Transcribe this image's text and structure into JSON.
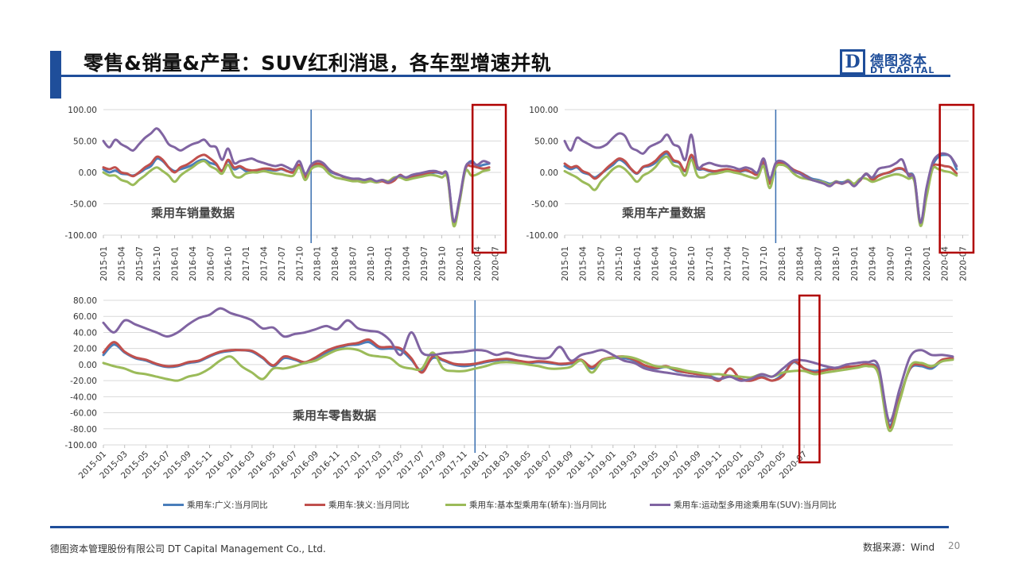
{
  "header": {
    "title": "零售&销量&产量：SUV红利消退，各车型增速并轨",
    "logo_cn": "德图资本",
    "logo_en": "DT CAPITAL",
    "logo_letter": "D"
  },
  "footer": {
    "company": "德图资本管理股份有限公司  DT Capital Management  Co., Ltd.",
    "source": "数据来源：Wind",
    "page": "20"
  },
  "colors": {
    "broad": "#4a7ebb",
    "narrow": "#c0504d",
    "sedan": "#9bbb59",
    "suv": "#8064a2",
    "highlight": "#b00000",
    "divider": "#3a6fb0"
  },
  "legend": [
    {
      "key": "broad",
      "label": "乘用车:广义:当月同比"
    },
    {
      "key": "narrow",
      "label": "乘用车:狭义:当月同比"
    },
    {
      "key": "sedan",
      "label": "乘用车:基本型乘用车(轿车):当月同比"
    },
    {
      "key": "suv",
      "label": "乘用车:运动型多用途乘用车(SUV):当月同比"
    }
  ],
  "chart_data": [
    {
      "type": "line",
      "annotation": "乘用车销量数据",
      "ylim": [
        -100,
        100
      ],
      "yticks": [
        "100.00",
        "50.00",
        "0.00",
        "-50.00",
        "-100.00"
      ],
      "xticks": [
        "2015-01",
        "2015-04",
        "2015-07",
        "2015-10",
        "2016-01",
        "2016-04",
        "2016-07",
        "2016-10",
        "2017-01",
        "2017-04",
        "2017-07",
        "2017-10",
        "2018-01",
        "2018-04",
        "2018-07",
        "2018-10",
        "2019-01",
        "2019-04",
        "2019-07",
        "2019-10",
        "2020-01",
        "2020-04",
        "2020-07"
      ],
      "start": "2015-01",
      "divider": "2017-12",
      "highlight": [
        "2020-04",
        "2020-08"
      ],
      "series": [
        {
          "key": "broad",
          "values": [
            5,
            0,
            3,
            -2,
            -3,
            -5,
            -1,
            5,
            10,
            22,
            18,
            8,
            2,
            5,
            8,
            12,
            18,
            20,
            15,
            12,
            3,
            18,
            5,
            8,
            2,
            1,
            3,
            5,
            4,
            3,
            5,
            2,
            1,
            10,
            -5,
            8,
            12,
            10,
            2,
            -2,
            -5,
            -10,
            -12,
            -12,
            -15,
            -12,
            -14,
            -13,
            -15,
            -12,
            -5,
            -10,
            -8,
            -6,
            -4,
            -2,
            0,
            -2,
            -5,
            -80,
            -45,
            5,
            18,
            10,
            12,
            14
          ]
        },
        {
          "key": "narrow",
          "values": [
            8,
            5,
            8,
            0,
            -2,
            -6,
            0,
            8,
            14,
            25,
            20,
            8,
            0,
            8,
            12,
            18,
            25,
            28,
            22,
            14,
            2,
            20,
            8,
            10,
            5,
            3,
            4,
            6,
            6,
            4,
            6,
            2,
            0,
            12,
            -8,
            10,
            14,
            12,
            4,
            -1,
            -5,
            -10,
            -12,
            -14,
            -16,
            -13,
            -16,
            -14,
            -17,
            -13,
            -4,
            -10,
            -6,
            -4,
            -2,
            0,
            1,
            -1,
            -8,
            -82,
            -46,
            6,
            10,
            8,
            6,
            8
          ]
        },
        {
          "key": "sedan",
          "values": [
            0,
            -5,
            -5,
            -12,
            -15,
            -20,
            -12,
            -5,
            3,
            8,
            2,
            -5,
            -15,
            -5,
            2,
            8,
            15,
            18,
            10,
            5,
            -2,
            12,
            -5,
            -8,
            -2,
            0,
            0,
            2,
            0,
            -2,
            -3,
            -5,
            -5,
            8,
            -12,
            5,
            10,
            8,
            -2,
            -8,
            -10,
            -12,
            -14,
            -14,
            -16,
            -14,
            -16,
            -12,
            -14,
            -8,
            -8,
            -12,
            -10,
            -8,
            -6,
            -4,
            -5,
            -8,
            -10,
            -85,
            -48,
            2,
            -5,
            -3,
            2,
            4
          ]
        },
        {
          "key": "suv",
          "values": [
            50,
            40,
            52,
            45,
            40,
            35,
            45,
            55,
            62,
            70,
            60,
            45,
            40,
            35,
            40,
            45,
            48,
            52,
            42,
            40,
            20,
            38,
            15,
            18,
            20,
            22,
            18,
            15,
            12,
            10,
            12,
            8,
            5,
            18,
            -2,
            12,
            18,
            15,
            5,
            -2,
            -5,
            -8,
            -10,
            -10,
            -12,
            -10,
            -14,
            -12,
            -16,
            -10,
            -5,
            -8,
            -4,
            -2,
            0,
            2,
            2,
            -2,
            -5,
            -78,
            -42,
            8,
            15,
            12,
            18,
            15
          ]
        }
      ]
    },
    {
      "type": "line",
      "annotation": "乘用车产量数据",
      "ylim": [
        -100,
        100
      ],
      "yticks": [
        "100.00",
        "50.00",
        "0.00",
        "-50.00",
        "-100.00"
      ],
      "xticks": [
        "2015-01",
        "2015-04",
        "2015-07",
        "2015-10",
        "2016-01",
        "2016-04",
        "2016-07",
        "2016-10",
        "2017-01",
        "2017-04",
        "2017-07",
        "2017-10",
        "2018-01",
        "2018-04",
        "2018-07",
        "2018-10",
        "2019-01",
        "2019-04",
        "2019-07",
        "2019-10",
        "2020-01",
        "2020-04",
        "2020-07"
      ],
      "start": "2015-01",
      "divider": "2017-12",
      "highlight": [
        "2020-04",
        "2020-08"
      ],
      "series": [
        {
          "key": "broad",
          "values": [
            10,
            5,
            8,
            0,
            -3,
            -8,
            -2,
            5,
            12,
            20,
            15,
            5,
            -2,
            8,
            10,
            15,
            25,
            30,
            18,
            15,
            2,
            25,
            6,
            5,
            2,
            1,
            3,
            4,
            2,
            1,
            3,
            0,
            -2,
            15,
            -15,
            10,
            14,
            10,
            3,
            0,
            -5,
            -10,
            -12,
            -15,
            -18,
            -15,
            -16,
            -14,
            -18,
            -12,
            -3,
            -10,
            -5,
            -2,
            0,
            5,
            5,
            -2,
            -10,
            -80,
            -30,
            10,
            25,
            28,
            25,
            5
          ]
        },
        {
          "key": "narrow",
          "values": [
            14,
            8,
            10,
            2,
            -2,
            -10,
            -3,
            7,
            15,
            22,
            18,
            6,
            -1,
            9,
            12,
            18,
            28,
            33,
            20,
            16,
            3,
            28,
            8,
            6,
            3,
            2,
            4,
            5,
            3,
            2,
            4,
            0,
            -3,
            17,
            -18,
            12,
            15,
            11,
            4,
            0,
            -6,
            -12,
            -14,
            -17,
            -20,
            -16,
            -18,
            -15,
            -20,
            -13,
            -2,
            -12,
            -6,
            -2,
            1,
            6,
            6,
            -3,
            -12,
            -82,
            -32,
            8,
            12,
            10,
            8,
            -2
          ]
        },
        {
          "key": "sedan",
          "values": [
            2,
            -3,
            -8,
            -15,
            -20,
            -28,
            -15,
            -5,
            5,
            10,
            5,
            -5,
            -15,
            -5,
            0,
            8,
            20,
            25,
            12,
            8,
            -5,
            20,
            -5,
            -8,
            -3,
            -2,
            0,
            2,
            0,
            -2,
            -5,
            -8,
            -8,
            10,
            -25,
            8,
            12,
            8,
            -2,
            -8,
            -10,
            -12,
            -14,
            -16,
            -20,
            -14,
            -18,
            -12,
            -18,
            -10,
            -10,
            -15,
            -12,
            -8,
            -5,
            -3,
            -5,
            -10,
            -15,
            -85,
            -40,
            5,
            5,
            2,
            0,
            -5
          ]
        },
        {
          "key": "suv",
          "values": [
            50,
            35,
            55,
            50,
            45,
            40,
            40,
            45,
            55,
            62,
            58,
            40,
            35,
            30,
            40,
            45,
            50,
            60,
            45,
            40,
            20,
            60,
            10,
            12,
            15,
            12,
            10,
            10,
            8,
            5,
            8,
            5,
            0,
            22,
            -10,
            15,
            18,
            12,
            2,
            -2,
            -8,
            -12,
            -15,
            -18,
            -22,
            -15,
            -18,
            -14,
            -22,
            -12,
            -2,
            -8,
            5,
            8,
            10,
            15,
            20,
            -5,
            -10,
            -80,
            -25,
            15,
            28,
            30,
            25,
            10
          ]
        }
      ]
    },
    {
      "type": "line",
      "annotation": "乘用车零售数据",
      "ylim": [
        -100,
        80
      ],
      "yticks": [
        "80.00",
        "60.00",
        "40.00",
        "20.00",
        "0.00",
        "-20.00",
        "-40.00",
        "-60.00",
        "-80.00",
        "-100.00"
      ],
      "xticks": [
        "2015-01",
        "2015-03",
        "2015-05",
        "2015-07",
        "2015-09",
        "2015-11",
        "2016-01",
        "2016-03",
        "2016-05",
        "2016-07",
        "2016-09",
        "2016-11",
        "2017-01",
        "2017-03",
        "2017-05",
        "2017-07",
        "2017-09",
        "2017-11",
        "2018-01",
        "2018-03",
        "2018-05",
        "2018-07",
        "2018-09",
        "2018-11",
        "2019-01",
        "2019-03",
        "2019-05",
        "2019-07",
        "2019-09",
        "2019-11",
        "2020-01",
        "2020-03",
        "2020-05",
        "2020-07"
      ],
      "start": "2015-01",
      "divider": "2017-12",
      "highlight": [
        "2020-07",
        "2020-08"
      ],
      "series": [
        {
          "key": "broad",
          "values": [
            12,
            25,
            15,
            8,
            5,
            0,
            -3,
            -2,
            2,
            4,
            10,
            15,
            17,
            18,
            16,
            8,
            -2,
            8,
            6,
            2,
            8,
            15,
            20,
            24,
            25,
            28,
            20,
            20,
            18,
            6,
            -8,
            8,
            5,
            0,
            -2,
            0,
            3,
            5,
            6,
            4,
            2,
            3,
            2,
            0,
            1,
            5,
            -5,
            5,
            8,
            8,
            5,
            -2,
            -5,
            -3,
            -8,
            -10,
            -12,
            -14,
            -18,
            -15,
            -18,
            -20,
            -15,
            -20,
            -12,
            3,
            -5,
            -8,
            -6,
            -4,
            -3,
            -2,
            0,
            -8,
            -75,
            -40,
            -5,
            -2,
            -5,
            5,
            7
          ]
        },
        {
          "key": "narrow",
          "values": [
            15,
            28,
            16,
            9,
            6,
            1,
            -2,
            -1,
            3,
            5,
            11,
            16,
            18,
            18,
            17,
            9,
            -1,
            10,
            7,
            3,
            9,
            17,
            22,
            25,
            27,
            31,
            22,
            22,
            20,
            8,
            -10,
            10,
            6,
            1,
            0,
            1,
            4,
            6,
            7,
            5,
            3,
            4,
            3,
            1,
            2,
            6,
            -3,
            6,
            9,
            10,
            6,
            -1,
            -4,
            -2,
            -7,
            -10,
            -12,
            -14,
            -20,
            -5,
            -18,
            -20,
            -16,
            -20,
            -14,
            4,
            -5,
            -10,
            -7,
            -5,
            -3,
            -2,
            0,
            -10,
            -78,
            -42,
            -4,
            0,
            -3,
            6,
            8
          ]
        },
        {
          "key": "sedan",
          "values": [
            2,
            -2,
            -5,
            -10,
            -12,
            -15,
            -18,
            -20,
            -15,
            -12,
            -5,
            5,
            10,
            -2,
            -10,
            -18,
            -5,
            -5,
            -2,
            2,
            5,
            12,
            18,
            20,
            18,
            12,
            10,
            8,
            -2,
            -5,
            -5,
            15,
            -5,
            -8,
            -8,
            -5,
            -2,
            2,
            3,
            2,
            0,
            -2,
            -5,
            -5,
            -3,
            5,
            -10,
            5,
            8,
            10,
            8,
            3,
            -2,
            -3,
            -5,
            -8,
            -10,
            -12,
            -12,
            -14,
            -15,
            -16,
            -12,
            -15,
            -10,
            -8,
            -8,
            -12,
            -10,
            -8,
            -6,
            -4,
            -2,
            -12,
            -82,
            -45,
            -2,
            2,
            -2,
            4,
            6
          ]
        },
        {
          "key": "suv",
          "values": [
            52,
            40,
            55,
            50,
            45,
            40,
            35,
            40,
            50,
            58,
            62,
            70,
            64,
            60,
            55,
            45,
            46,
            35,
            38,
            40,
            44,
            48,
            44,
            55,
            45,
            42,
            40,
            30,
            12,
            40,
            15,
            12,
            14,
            15,
            16,
            18,
            17,
            12,
            15,
            12,
            10,
            8,
            9,
            22,
            5,
            12,
            15,
            18,
            12,
            5,
            2,
            -5,
            -8,
            -10,
            -12,
            -14,
            -15,
            -16,
            -18,
            -15,
            -20,
            -18,
            -12,
            -15,
            -5,
            5,
            5,
            2,
            -2,
            -4,
            0,
            2,
            3,
            -2,
            -70,
            -30,
            10,
            18,
            12,
            12,
            10
          ]
        }
      ]
    }
  ]
}
